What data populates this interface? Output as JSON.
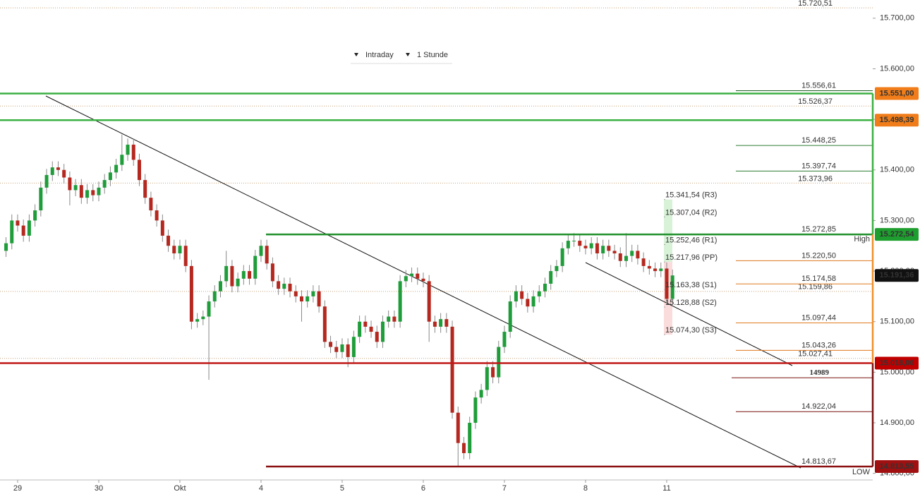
{
  "chart_data": {
    "type": "candlestick",
    "controls": [
      "Intraday",
      "1 Stunde"
    ],
    "xlim": [
      -3.04,
      147.55
    ],
    "xticks": [
      {
        "value": 0,
        "label": "29"
      },
      {
        "value": 14,
        "label": "30"
      },
      {
        "value": 28,
        "label": "Okt"
      },
      {
        "value": 42,
        "label": "4"
      },
      {
        "value": 56,
        "label": "5"
      },
      {
        "value": 70,
        "label": "6"
      },
      {
        "value": 84,
        "label": "7"
      },
      {
        "value": 98,
        "label": "8"
      },
      {
        "value": 112,
        "label": "11"
      }
    ],
    "ylim": [
      14787,
      15736
    ],
    "yticks": [
      {
        "value": 15700,
        "label": "15.700,00"
      },
      {
        "value": 15600,
        "label": "15.600,00"
      },
      {
        "value": 15500,
        "label": "15.500,00"
      },
      {
        "value": 15400,
        "label": "15.400,00"
      },
      {
        "value": 15300,
        "label": "15.300,00"
      },
      {
        "value": 15200,
        "label": "15.200,00"
      },
      {
        "value": 15100,
        "label": "15.100,00"
      },
      {
        "value": 15000,
        "label": "15.000,00"
      },
      {
        "value": 14900,
        "label": "14.900,00"
      },
      {
        "value": 14800,
        "label": "14.800,00"
      }
    ],
    "series": [
      {
        "up_color": "#1f9d3a",
        "down_color": "#b5281f",
        "x": [
          -2,
          -1,
          0,
          1,
          2,
          3,
          4,
          5,
          6,
          7,
          8,
          9,
          10,
          11,
          12,
          13,
          14,
          15,
          16,
          17,
          18,
          19,
          20,
          21,
          22,
          23,
          24,
          25,
          26,
          27,
          28,
          29,
          30,
          31,
          32,
          33,
          34,
          35,
          36,
          37,
          38,
          39,
          40,
          41,
          42,
          43,
          44,
          45,
          46,
          47,
          48,
          49,
          50,
          51,
          52,
          53,
          54,
          55,
          56,
          57,
          58,
          59,
          60,
          61,
          62,
          63,
          64,
          65,
          66,
          67,
          68,
          69,
          70,
          71,
          72,
          73,
          74,
          75,
          76,
          77,
          78,
          79,
          80,
          81,
          82,
          83,
          84,
          85,
          86,
          87,
          88,
          89,
          90,
          91,
          92,
          93,
          94,
          95,
          96,
          97,
          98,
          99,
          100,
          101,
          102,
          103,
          104,
          105,
          106,
          107,
          108,
          109,
          110,
          111,
          112,
          113
        ],
        "open": [
          15240,
          15255,
          15300,
          15290,
          15270,
          15300,
          15320,
          15365,
          15390,
          15405,
          15400,
          15385,
          15360,
          15370,
          15345,
          15360,
          15350,
          15365,
          15380,
          15395,
          15410,
          15430,
          15450,
          15420,
          15380,
          15345,
          15320,
          15300,
          15270,
          15250,
          15235,
          15250,
          15210,
          15100,
          15105,
          15110,
          15140,
          15160,
          15180,
          15210,
          15170,
          15185,
          15200,
          15185,
          15230,
          15250,
          15215,
          15180,
          15165,
          15175,
          15160,
          15150,
          15140,
          15150,
          15160,
          15130,
          15060,
          15050,
          15040,
          15055,
          15030,
          15070,
          15100,
          15090,
          15080,
          15060,
          15100,
          15110,
          15100,
          15180,
          15190,
          15195,
          15185,
          15180,
          15100,
          15090,
          15105,
          15090,
          14920,
          14860,
          14840,
          14900,
          14950,
          14965,
          15010,
          14990,
          15050,
          15080,
          15140,
          15160,
          15145,
          15130,
          15150,
          15160,
          15175,
          15200,
          15210,
          15245,
          15260,
          15260,
          15250,
          15245,
          15255,
          15235,
          15250,
          15240,
          15235,
          15220,
          15230,
          15240,
          15225,
          15210,
          15205,
          15200,
          15205,
          15145
        ],
        "high": [
          15267,
          15312,
          15312,
          15302,
          15312,
          15332,
          15377,
          15402,
          15417,
          15417,
          15412,
          15397,
          15382,
          15382,
          15372,
          15372,
          15377,
          15392,
          15407,
          15422,
          15470,
          15462,
          15462,
          15432,
          15392,
          15357,
          15332,
          15312,
          15282,
          15262,
          15262,
          15262,
          15222,
          15117,
          15122,
          15152,
          15172,
          15192,
          15240,
          15222,
          15197,
          15212,
          15212,
          15242,
          15262,
          15262,
          15227,
          15192,
          15187,
          15187,
          15172,
          15162,
          15162,
          15172,
          15172,
          15142,
          15072,
          15062,
          15067,
          15067,
          15082,
          15112,
          15112,
          15102,
          15092,
          15112,
          15122,
          15122,
          15192,
          15202,
          15207,
          15207,
          15197,
          15192,
          15112,
          15117,
          15117,
          15102,
          14932,
          14872,
          14912,
          14962,
          14977,
          15022,
          15022,
          15062,
          15092,
          15152,
          15172,
          15172,
          15157,
          15162,
          15172,
          15187,
          15212,
          15222,
          15257,
          15272,
          15275,
          15272,
          15262,
          15267,
          15267,
          15262,
          15262,
          15252,
          15247,
          15275,
          15252,
          15252,
          15237,
          15222,
          15217,
          15217,
          15217,
          15203
        ],
        "low": [
          15228,
          15243,
          15278,
          15258,
          15258,
          15288,
          15308,
          15353,
          15378,
          15388,
          15373,
          15330,
          15348,
          15333,
          15333,
          15338,
          15338,
          15353,
          15368,
          15383,
          15398,
          15418,
          15408,
          15368,
          15333,
          15308,
          15288,
          15258,
          15238,
          15223,
          15223,
          15198,
          15085,
          15088,
          15093,
          14985,
          15128,
          15148,
          15168,
          15158,
          15158,
          15173,
          15173,
          15173,
          15218,
          15203,
          15168,
          15153,
          15153,
          15148,
          15138,
          15100,
          15128,
          15138,
          15118,
          15048,
          15038,
          15028,
          15028,
          15010,
          15018,
          15058,
          15078,
          15068,
          15048,
          15048,
          15088,
          15088,
          15088,
          15168,
          15178,
          15173,
          15168,
          15060,
          15078,
          15078,
          15078,
          14908,
          14814,
          14828,
          14828,
          14888,
          14938,
          14953,
          14978,
          14978,
          15038,
          15068,
          15128,
          15133,
          15118,
          15118,
          15138,
          15148,
          15163,
          15188,
          15198,
          15233,
          15248,
          15238,
          15233,
          15233,
          15223,
          15223,
          15228,
          15223,
          15208,
          15208,
          15218,
          15213,
          15198,
          15193,
          15188,
          15188,
          15133,
          15135
        ],
        "close": [
          15255,
          15300,
          15290,
          15270,
          15300,
          15320,
          15365,
          15390,
          15405,
          15400,
          15385,
          15360,
          15370,
          15345,
          15360,
          15350,
          15365,
          15380,
          15395,
          15410,
          15430,
          15450,
          15420,
          15380,
          15345,
          15320,
          15300,
          15270,
          15250,
          15235,
          15250,
          15210,
          15100,
          15105,
          15110,
          15140,
          15160,
          15180,
          15210,
          15170,
          15185,
          15200,
          15185,
          15230,
          15250,
          15215,
          15180,
          15165,
          15175,
          15160,
          15150,
          15140,
          15150,
          15160,
          15130,
          15060,
          15050,
          15040,
          15055,
          15030,
          15070,
          15100,
          15090,
          15080,
          15060,
          15100,
          15110,
          15100,
          15180,
          15190,
          15195,
          15185,
          15180,
          15100,
          15090,
          15105,
          15090,
          14920,
          14860,
          14840,
          14900,
          14950,
          14965,
          15010,
          14990,
          15050,
          15080,
          15140,
          15160,
          15145,
          15130,
          15150,
          15160,
          15175,
          15200,
          15210,
          15245,
          15260,
          15260,
          15250,
          15245,
          15255,
          15235,
          15250,
          15240,
          15235,
          15220,
          15230,
          15240,
          15225,
          15210,
          15205,
          15200,
          15205,
          15145,
          15191.36
        ]
      }
    ],
    "price_levels": [
      {
        "value": 15551,
        "label": "15.551,00",
        "color": "#f07d1a",
        "line_color": "#3cb043"
      },
      {
        "value": 15498.39,
        "label": "15.498,39",
        "color": "#f07d1a",
        "line_color": "#3cb043"
      },
      {
        "value": 15272.54,
        "label": "15.272,54",
        "color": "#1e9e2e",
        "line_color": "#1e8f2a"
      },
      {
        "value": 15191.36,
        "label": "15.191,36",
        "color": "#111111"
      },
      {
        "value": 15018,
        "label": "15.018,00",
        "color": "#c00000",
        "line_color": "#c01818"
      },
      {
        "value": 14813.55,
        "label": "14.813,55",
        "color": "#a01010",
        "line_color": "#8b1010"
      }
    ],
    "reference_lines": [
      {
        "value": 15720.51,
        "label": "15.720,51"
      },
      {
        "value": 15526.37,
        "label": "15.526,37"
      },
      {
        "value": 15373.96,
        "label": "15.373,96"
      },
      {
        "value": 15159.86,
        "label": "15.159,86"
      },
      {
        "value": 15027.41,
        "label": "15.027,41"
      }
    ],
    "targets": [
      {
        "value": 15556.61,
        "label": "15.556,61",
        "color": "#1b5e20"
      },
      {
        "value": 15448.25,
        "label": "15.448,25",
        "color": "#2e7d32"
      },
      {
        "value": 15397.74,
        "label": "15.397,74",
        "color": "#2e7d32"
      },
      {
        "value": 15272.85,
        "label": "15.272,85",
        "color": "#2e7d32"
      },
      {
        "value": 15220.5,
        "label": "15.220,50",
        "color": "#e07a20"
      },
      {
        "value": 15174.58,
        "label": "15.174,58",
        "color": "#e07a20"
      },
      {
        "value": 15097.44,
        "label": "15.097,44",
        "color": "#e07a20"
      },
      {
        "value": 15043.26,
        "label": "15.043,26",
        "color": "#e07a20"
      },
      {
        "value": 14989,
        "label": "14989",
        "color": "#7a1010"
      },
      {
        "value": 14922.04,
        "label": "14.922,04",
        "color": "#7a1010"
      },
      {
        "value": 14813.67,
        "label": "14.813,67",
        "color": "#7a1010"
      }
    ],
    "pivots": [
      {
        "value": 15341.54,
        "label": "15.341,54 (R3)"
      },
      {
        "value": 15307.04,
        "label": "15.307,04 (R2)"
      },
      {
        "value": 15252.46,
        "label": "15.252,46 (R1)"
      },
      {
        "value": 15217.96,
        "label": "15.217,96 (PP)"
      },
      {
        "value": 15163.38,
        "label": "15.163,38 (S1)"
      },
      {
        "value": 15128.88,
        "label": "15.128,88 (S2)"
      },
      {
        "value": 15074.3,
        "label": "15.074,30 (S3)"
      }
    ],
    "annotations": [
      "High",
      "LOW"
    ]
  }
}
